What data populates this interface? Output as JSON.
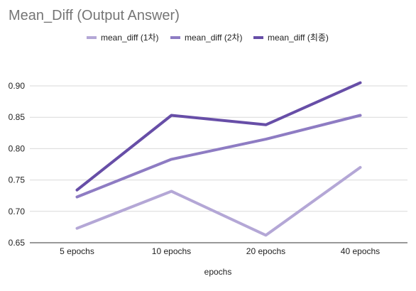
{
  "chart_data": {
    "type": "line",
    "title": "Mean_Diff (Output Answer)",
    "xlabel": "epochs",
    "ylabel": "",
    "categories": [
      "5 epochs",
      "10 epochs",
      "20 epochs",
      "40 epochs"
    ],
    "ylim": [
      0.65,
      0.9
    ],
    "yticks": [
      "0.65",
      "0.70",
      "0.75",
      "0.80",
      "0.85",
      "0.90"
    ],
    "grid": true,
    "legend_position": "top",
    "series": [
      {
        "name": "mean_diff (1차)",
        "color": "#b4a7d6",
        "values": [
          0.673,
          0.732,
          0.662,
          0.77
        ]
      },
      {
        "name": "mean_diff (2차)",
        "color": "#8e7cc3",
        "values": [
          0.723,
          0.783,
          0.815,
          0.853
        ]
      },
      {
        "name": "mean_diff (최종)",
        "color": "#674ea7",
        "values": [
          0.734,
          0.853,
          0.838,
          0.905
        ]
      }
    ]
  }
}
